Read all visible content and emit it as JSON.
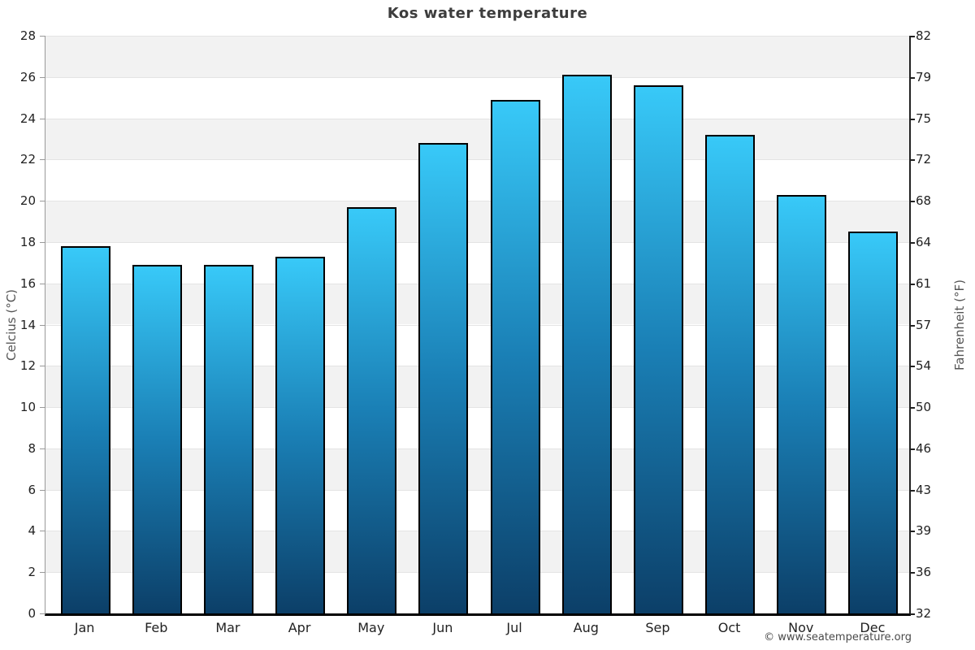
{
  "chart_data": {
    "type": "bar",
    "title": "Kos water temperature",
    "categories": [
      "Jan",
      "Feb",
      "Mar",
      "Apr",
      "May",
      "Jun",
      "Jul",
      "Aug",
      "Sep",
      "Oct",
      "Nov",
      "Dec"
    ],
    "values": [
      17.8,
      16.9,
      16.9,
      17.3,
      19.7,
      22.8,
      24.9,
      26.1,
      25.6,
      23.2,
      20.3,
      18.5
    ],
    "unit": "°C",
    "ylabel_left": "Celcius (°C)",
    "ylabel_right": "Fahrenheit (°F)",
    "ylim": [
      0,
      28
    ],
    "yticks_celsius": [
      28,
      26,
      24,
      22,
      20,
      18,
      16,
      14,
      12,
      10,
      8,
      6,
      4,
      2,
      0
    ],
    "yticks_fahrenheit": [
      82,
      79,
      75,
      72,
      68,
      64,
      61,
      57,
      54,
      50,
      46,
      43,
      39,
      36,
      32
    ],
    "grid": "alternating-horizontal-bands",
    "legend": "none",
    "colors": {
      "bar_gradient_top": "#38c9f8",
      "bar_gradient_mid": "#1a7fb5",
      "bar_gradient_bottom": "#0c3f68",
      "bar_border": "#000000",
      "band_gray": "#f2f2f2",
      "gridline": "#e4e4e4",
      "tick_text": "#222222",
      "axis_title_text": "#555555",
      "title_text": "#3d3d3d",
      "footer_text": "#4a4a4a"
    }
  },
  "footer": {
    "copyright": "© www.seatemperature.org"
  }
}
